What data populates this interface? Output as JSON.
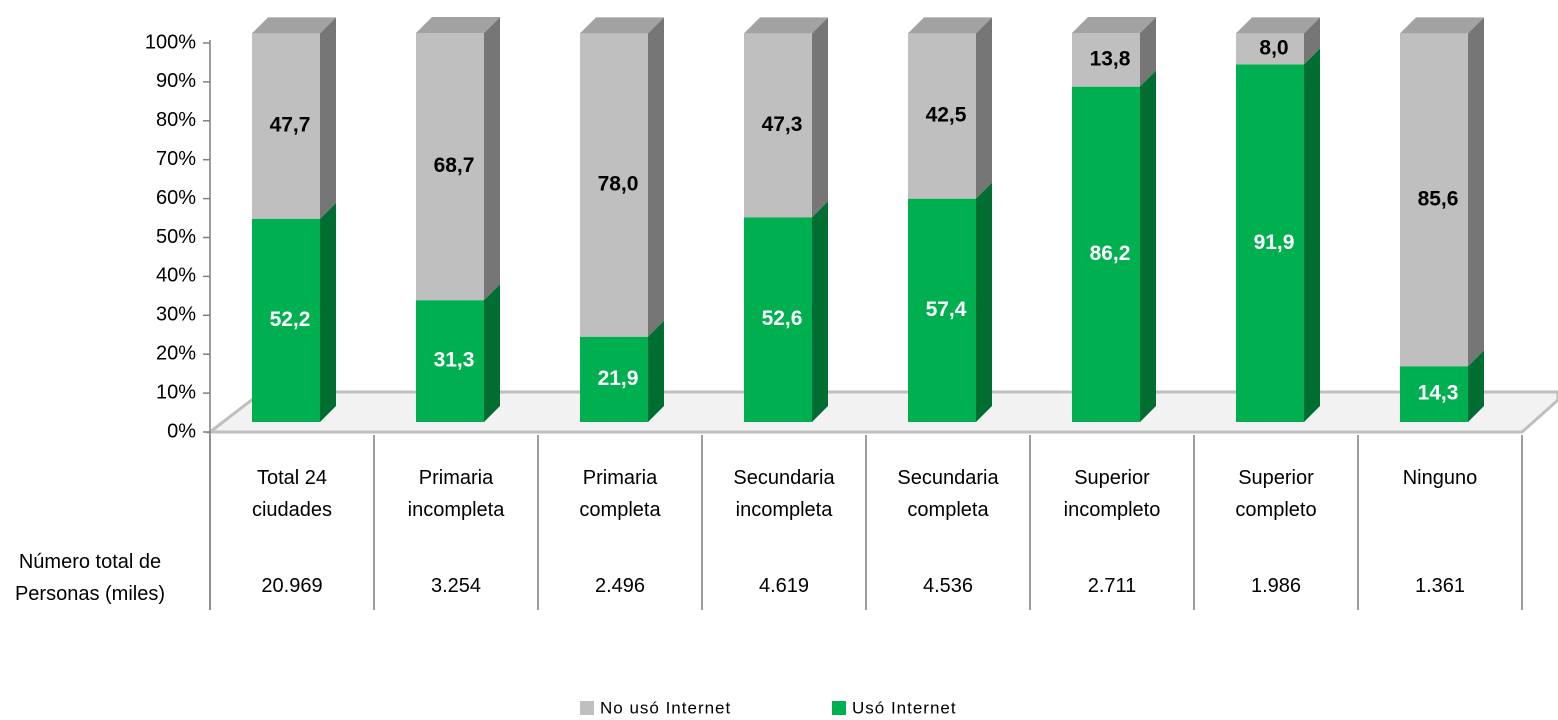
{
  "chart_data": {
    "type": "bar",
    "categories": [
      "Total 24 ciudades",
      "Primaria incompleta",
      "Primaria completa",
      "Secundaria incompleta",
      "Secundaria completa",
      "Superior incompleto",
      "Superior completo",
      "Ninguno"
    ],
    "series": [
      {
        "name": "No usó Internet",
        "color": "#bfbfbf",
        "values": [
          47.7,
          68.7,
          78.0,
          47.3,
          42.5,
          13.8,
          8.0,
          85.6
        ],
        "value_labels": [
          "47,7",
          "68,7",
          "78,0",
          "47,3",
          "42,5",
          "13,8",
          "8,0",
          "85,6"
        ]
      },
      {
        "name": "Usó Internet",
        "color": "#00b050",
        "values": [
          52.2,
          31.3,
          21.9,
          52.6,
          57.4,
          86.2,
          91.9,
          14.3
        ],
        "value_labels": [
          "52,2",
          "31,3",
          "21,9",
          "52,6",
          "57,4",
          "86,2",
          "91,9",
          "14,3"
        ]
      }
    ],
    "ylim": [
      0,
      100
    ],
    "yticks": [
      {
        "value": 0,
        "label": "0%"
      },
      {
        "value": 10,
        "label": "10%"
      },
      {
        "value": 20,
        "label": "20%"
      },
      {
        "value": 30,
        "label": "30%"
      },
      {
        "value": 40,
        "label": "40%"
      },
      {
        "value": 50,
        "label": "50%"
      },
      {
        "value": 60,
        "label": "60%"
      },
      {
        "value": 70,
        "label": "70%"
      },
      {
        "value": 80,
        "label": "80%"
      },
      {
        "value": 90,
        "label": "90%"
      },
      {
        "value": 100,
        "label": "100%"
      }
    ],
    "table": {
      "row_label": "Número total de Personas (miles)",
      "values": [
        "20.969",
        "3.254",
        "2.496",
        "4.619",
        "4.536",
        "2.711",
        "1.986",
        "1.361"
      ]
    }
  }
}
